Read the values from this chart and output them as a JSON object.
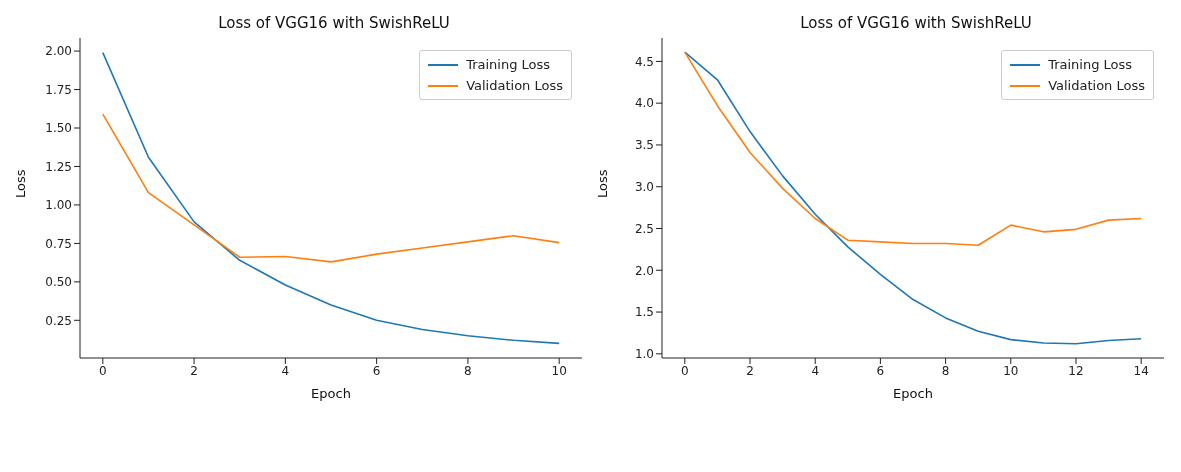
{
  "chart_data": [
    {
      "type": "line",
      "title": "Loss of VGG16 with SwishReLU",
      "xlabel": "Epoch",
      "ylabel": "Loss",
      "x": [
        0,
        1,
        2,
        3,
        4,
        5,
        6,
        7,
        8,
        9,
        10
      ],
      "xlim": [
        -0.5,
        10.5
      ],
      "xticks": [
        0,
        2,
        4,
        6,
        8,
        10
      ],
      "ylim": [
        0.005,
        2.085
      ],
      "yticks": [
        {
          "value": 0.25,
          "label": "0.25"
        },
        {
          "value": 0.5,
          "label": "0.50"
        },
        {
          "value": 0.75,
          "label": "0.75"
        },
        {
          "value": 1,
          "label": "1.00"
        },
        {
          "value": 1.25,
          "label": "1.25"
        },
        {
          "value": 1.5,
          "label": "1.50"
        },
        {
          "value": 1.75,
          "label": "1.75"
        },
        {
          "value": 2,
          "label": "2.00"
        }
      ],
      "legend": "top right",
      "grid": false,
      "marker": "none",
      "line_style": "solid",
      "series": [
        {
          "name": "Training Loss",
          "color": "#1f77b4",
          "values": [
            1.99,
            1.31,
            0.89,
            0.64,
            0.48,
            0.35,
            0.25,
            0.19,
            0.15,
            0.12,
            0.1
          ]
        },
        {
          "name": "Validation Loss",
          "color": "#ff7f0e",
          "values": [
            1.59,
            1.08,
            0.87,
            0.66,
            0.665,
            0.63,
            0.68,
            0.72,
            0.76,
            0.8,
            0.755
          ]
        }
      ]
    },
    {
      "type": "line",
      "title": "Loss of VGG16 with SwishReLU",
      "xlabel": "Epoch",
      "ylabel": "Loss",
      "x": [
        0,
        1,
        2,
        3,
        4,
        5,
        6,
        7,
        8,
        9,
        10,
        11,
        12,
        13,
        14
      ],
      "xlim": [
        -0.7,
        14.7
      ],
      "xticks": [
        0,
        2,
        4,
        6,
        8,
        10,
        12,
        14
      ],
      "ylim": [
        0.95,
        4.78
      ],
      "yticks": [
        {
          "value": 1,
          "label": "1.0"
        },
        {
          "value": 1.5,
          "label": "1.5"
        },
        {
          "value": 2,
          "label": "2.0"
        },
        {
          "value": 2.5,
          "label": "2.5"
        },
        {
          "value": 3,
          "label": "3.0"
        },
        {
          "value": 3.5,
          "label": "3.5"
        },
        {
          "value": 4,
          "label": "4.0"
        },
        {
          "value": 4.5,
          "label": "4.5"
        }
      ],
      "legend": "top right",
      "grid": false,
      "marker": "none",
      "line_style": "solid",
      "series": [
        {
          "name": "Training Loss",
          "color": "#1f77b4",
          "values": [
            4.61,
            4.28,
            3.66,
            3.13,
            2.67,
            2.28,
            1.95,
            1.65,
            1.43,
            1.27,
            1.17,
            1.13,
            1.12,
            1.16,
            1.18
          ]
        },
        {
          "name": "Validation Loss",
          "color": "#ff7f0e",
          "values": [
            4.61,
            3.97,
            3.41,
            2.98,
            2.62,
            2.36,
            2.34,
            2.32,
            2.32,
            2.3,
            2.54,
            2.46,
            2.49,
            2.6,
            2.62
          ]
        }
      ]
    }
  ]
}
